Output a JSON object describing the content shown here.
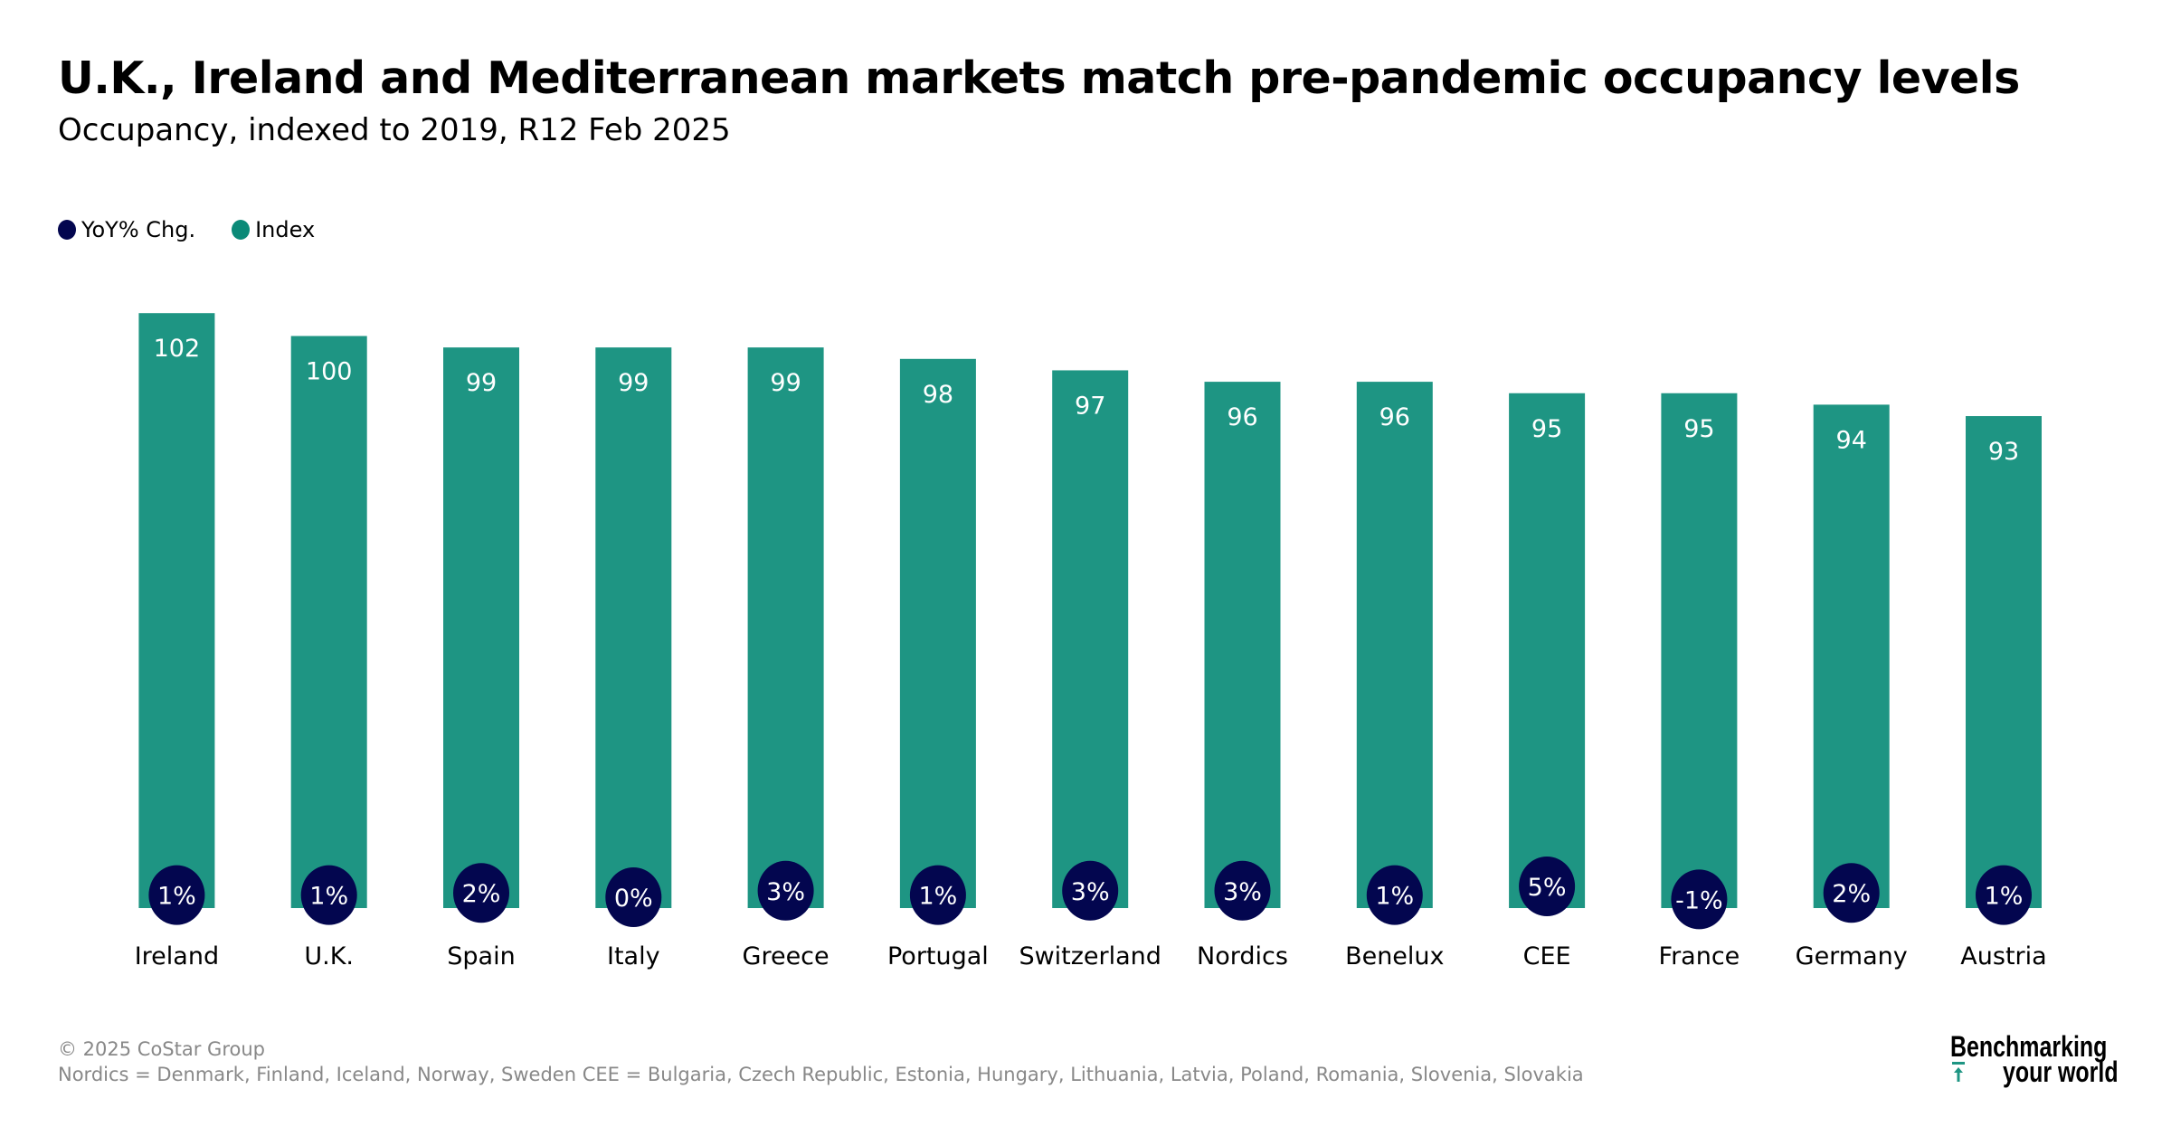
{
  "colors": {
    "index": "#1e9583",
    "yoy": "#03064f",
    "legend_index": "#0b8a78"
  },
  "chart_data": {
    "type": "bar",
    "title": "U.K., Ireland and Mediterranean markets match pre-pandemic occupancy levels",
    "subtitle": "Occupancy, indexed to 2019, R12 Feb 2025",
    "xlabel": "",
    "ylabel": "",
    "ylim": [
      50,
      105
    ],
    "grid": false,
    "legend_position": "top-left",
    "legend": [
      "YoY% Chg.",
      "Index"
    ],
    "categories": [
      "Ireland",
      "U.K.",
      "Spain",
      "Italy",
      "Greece",
      "Portugal",
      "Switzerland",
      "Nordics",
      "Benelux",
      "CEE",
      "France",
      "Germany",
      "Austria"
    ],
    "series": [
      {
        "name": "Index",
        "values": [
          102,
          100,
          99,
          99,
          99,
          98,
          97,
          96,
          96,
          95,
          95,
          94,
          93
        ]
      },
      {
        "name": "YoY% Chg.",
        "values": [
          1,
          1,
          2,
          0,
          3,
          1,
          3,
          3,
          1,
          5,
          -1,
          2,
          1
        ],
        "labels": [
          "1%",
          "1%",
          "2%",
          "0%",
          "3%",
          "1%",
          "3%",
          "3%",
          "1%",
          "5%",
          "-1%",
          "2%",
          "1%"
        ]
      }
    ]
  },
  "footer": {
    "copyright": "© 2025 CoStar Group",
    "note": "Nordics = Denmark, Finland, Iceland, Norway, Sweden CEE = Bulgaria, Czech Republic, Estonia, Hungary, Lithuania, Latvia, Poland, Romania, Slovenia, Slovakia"
  },
  "logo": {
    "line1": "Benchmarking",
    "line2": "your world"
  }
}
